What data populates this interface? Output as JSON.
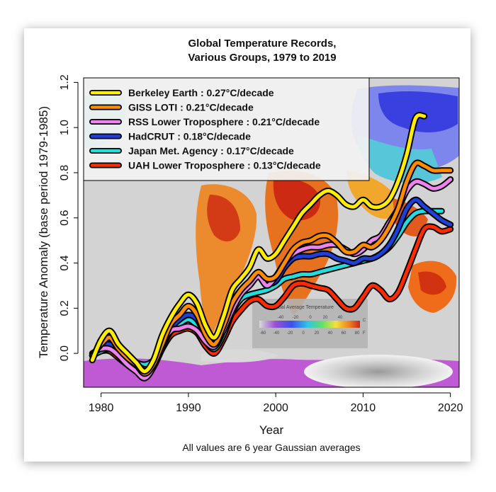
{
  "chart_data": {
    "type": "line",
    "title": "Global Temperature Records,",
    "title_line2": "Various Groups, 1979 to 2019",
    "xlabel": "Year",
    "ylabel": "Temperature Anomaly (base period 1979-1985)",
    "subtitle": "All values are 6 year Gaussian averages",
    "xlim": [
      1978,
      2021
    ],
    "ylim": [
      -0.15,
      1.22
    ],
    "x_ticks": [
      1980,
      1990,
      2000,
      2010,
      2020
    ],
    "y_ticks": [
      0.0,
      0.2,
      0.4,
      0.6,
      0.8,
      1.0,
      1.2
    ],
    "y_tick_labels": [
      "0.0",
      "0.2",
      "0.4",
      "0.6",
      "0.8",
      "1.0",
      "1.2"
    ],
    "inset_legend": {
      "title": "Global Average Temperature",
      "c_ticks": [
        "-40",
        "-20",
        "0",
        "20",
        "40"
      ],
      "f_ticks": [
        "-60",
        "-40",
        "-20",
        "0",
        "20",
        "40",
        "60",
        "80"
      ],
      "c_unit": "C",
      "f_unit": "F"
    },
    "series": [
      {
        "name": "Berkeley Earth : 0.27°C/decade",
        "color": "#ffee00",
        "x": [
          1979,
          1980,
          1981,
          1982,
          1983,
          1984,
          1985,
          1986,
          1987,
          1988,
          1989,
          1990,
          1991,
          1992,
          1993,
          1994,
          1995,
          1996,
          1997,
          1998,
          1999,
          2000,
          2001,
          2002,
          2003,
          2004,
          2005,
          2006,
          2007,
          2008,
          2009,
          2010,
          2011,
          2012,
          2013,
          2014,
          2015,
          2016,
          2017
        ],
        "y": [
          -0.03,
          0.06,
          0.1,
          0.04,
          0.0,
          -0.04,
          -0.08,
          -0.03,
          0.08,
          0.16,
          0.22,
          0.26,
          0.22,
          0.12,
          0.07,
          0.16,
          0.28,
          0.33,
          0.38,
          0.46,
          0.42,
          0.44,
          0.5,
          0.56,
          0.62,
          0.66,
          0.7,
          0.72,
          0.7,
          0.66,
          0.65,
          0.68,
          0.65,
          0.65,
          0.68,
          0.76,
          0.88,
          1.04,
          1.05
        ]
      },
      {
        "name": "GISS LOTI : 0.21°C/decade",
        "color": "#ff8c00",
        "x": [
          1979,
          1980,
          1981,
          1982,
          1983,
          1984,
          1985,
          1986,
          1987,
          1988,
          1989,
          1990,
          1991,
          1992,
          1993,
          1994,
          1995,
          1996,
          1997,
          1998,
          1999,
          2000,
          2001,
          2002,
          2003,
          2004,
          2005,
          2006,
          2007,
          2008,
          2009,
          2010,
          2011,
          2012,
          2013,
          2014,
          2015,
          2016,
          2017,
          2018,
          2019,
          2020
        ],
        "y": [
          -0.01,
          0.04,
          0.07,
          0.02,
          -0.02,
          -0.05,
          -0.09,
          -0.05,
          0.04,
          0.13,
          0.17,
          0.21,
          0.17,
          0.08,
          0.04,
          0.12,
          0.22,
          0.28,
          0.32,
          0.36,
          0.33,
          0.34,
          0.4,
          0.46,
          0.49,
          0.5,
          0.52,
          0.52,
          0.49,
          0.45,
          0.45,
          0.48,
          0.47,
          0.5,
          0.56,
          0.64,
          0.76,
          0.84,
          0.83,
          0.81,
          0.81,
          0.81
        ]
      },
      {
        "name": "RSS Lower Troposphere : 0.21°C/decade",
        "color": "#ee82ee",
        "x": [
          1979,
          1980,
          1981,
          1982,
          1983,
          1984,
          1985,
          1986,
          1987,
          1988,
          1989,
          1990,
          1991,
          1992,
          1993,
          1994,
          1995,
          1996,
          1997,
          1998,
          1999,
          2000,
          2001,
          2002,
          2003,
          2004,
          2005,
          2006,
          2007,
          2008,
          2009,
          2010,
          2011,
          2012,
          2013,
          2014,
          2015,
          2016,
          2017,
          2018,
          2019,
          2020
        ],
        "y": [
          0.0,
          0.02,
          0.02,
          -0.01,
          -0.05,
          -0.08,
          -0.11,
          -0.06,
          0.04,
          0.1,
          0.11,
          0.12,
          0.1,
          0.05,
          0.03,
          0.1,
          0.19,
          0.26,
          0.3,
          0.34,
          0.3,
          0.34,
          0.4,
          0.44,
          0.46,
          0.47,
          0.47,
          0.48,
          0.48,
          0.46,
          0.44,
          0.46,
          0.5,
          0.52,
          0.58,
          0.64,
          0.72,
          0.76,
          0.75,
          0.73,
          0.74,
          0.77
        ]
      },
      {
        "name": "HadCRUT : 0.18°C/decade",
        "color": "#1f3fd6",
        "x": [
          1979,
          1980,
          1981,
          1982,
          1983,
          1984,
          1985,
          1986,
          1987,
          1988,
          1989,
          1990,
          1991,
          1992,
          1993,
          1994,
          1995,
          1996,
          1997,
          1998,
          1999,
          2000,
          2001,
          2002,
          2003,
          2004,
          2005,
          2006,
          2007,
          2008,
          2009,
          2010,
          2011,
          2012,
          2013,
          2014,
          2015,
          2016,
          2017,
          2018,
          2019,
          2020
        ],
        "y": [
          -0.01,
          0.03,
          0.04,
          0.01,
          -0.03,
          -0.05,
          -0.07,
          -0.05,
          0.03,
          0.11,
          0.15,
          0.17,
          0.15,
          0.08,
          0.04,
          0.12,
          0.22,
          0.28,
          0.31,
          0.34,
          0.31,
          0.32,
          0.38,
          0.42,
          0.43,
          0.43,
          0.44,
          0.44,
          0.42,
          0.41,
          0.4,
          0.42,
          0.42,
          0.44,
          0.48,
          0.55,
          0.64,
          0.68,
          0.65,
          0.62,
          0.59,
          0.57
        ]
      },
      {
        "name": "Japan Met. Agency : 0.17°C/decade",
        "color": "#22dddd",
        "x": [
          1979,
          1980,
          1981,
          1982,
          1983,
          1984,
          1985,
          1986,
          1987,
          1988,
          1989,
          1990,
          1991,
          1992,
          1993,
          1994,
          1995,
          1996,
          1997,
          1998,
          1999,
          2000,
          2001,
          2002,
          2003,
          2004,
          2005,
          2006,
          2007,
          2008,
          2009,
          2010,
          2011,
          2012,
          2013,
          2014,
          2015,
          2016,
          2017,
          2018,
          2019
        ],
        "y": [
          -0.01,
          0.01,
          0.02,
          0.0,
          -0.02,
          -0.04,
          -0.05,
          -0.03,
          0.03,
          0.1,
          0.13,
          0.15,
          0.12,
          0.05,
          0.02,
          0.08,
          0.18,
          0.24,
          0.26,
          0.27,
          0.28,
          0.3,
          0.33,
          0.34,
          0.35,
          0.35,
          0.36,
          0.37,
          0.38,
          0.39,
          0.4,
          0.41,
          0.42,
          0.44,
          0.47,
          0.52,
          0.58,
          0.62,
          0.63,
          0.63,
          0.63
        ]
      },
      {
        "name": "UAH Lower Troposphere : 0.13°C/decade",
        "color": "#ff2a00",
        "x": [
          1979,
          1980,
          1981,
          1982,
          1983,
          1984,
          1985,
          1986,
          1987,
          1988,
          1989,
          1990,
          1991,
          1992,
          1993,
          1994,
          1995,
          1996,
          1997,
          1998,
          1999,
          2000,
          2001,
          2002,
          2003,
          2004,
          2005,
          2006,
          2007,
          2008,
          2009,
          2010,
          2011,
          2012,
          2013,
          2014,
          2015,
          2016,
          2017,
          2018,
          2019,
          2020
        ],
        "y": [
          -0.01,
          0.01,
          0.01,
          -0.02,
          -0.05,
          -0.07,
          -0.09,
          -0.06,
          0.02,
          0.08,
          0.1,
          0.11,
          0.09,
          0.03,
          0.0,
          0.06,
          0.14,
          0.19,
          0.23,
          0.24,
          0.21,
          0.21,
          0.25,
          0.3,
          0.31,
          0.3,
          0.29,
          0.28,
          0.24,
          0.2,
          0.2,
          0.25,
          0.3,
          0.28,
          0.24,
          0.27,
          0.36,
          0.46,
          0.55,
          0.56,
          0.54,
          0.55
        ]
      }
    ]
  }
}
